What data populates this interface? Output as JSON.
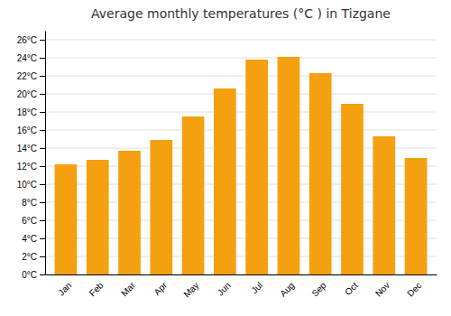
{
  "chart_data": {
    "type": "bar",
    "title": "Average monthly temperatures (°C ) in Tizgane",
    "categories": [
      "Jan",
      "Feb",
      "Mar",
      "Apr",
      "May",
      "Jun",
      "Jul",
      "Aug",
      "Sep",
      "Oct",
      "Nov",
      "Dec"
    ],
    "values": [
      12.2,
      12.7,
      13.7,
      14.9,
      17.5,
      20.6,
      23.8,
      24.1,
      22.3,
      18.9,
      15.3,
      12.9
    ],
    "color": "#F4A010",
    "ylim": [
      0,
      27
    ],
    "yticks": [
      {
        "value": 0,
        "label": "0°C"
      },
      {
        "value": 2,
        "label": "2°C"
      },
      {
        "value": 4,
        "label": "4°C"
      },
      {
        "value": 6,
        "label": "6°C"
      },
      {
        "value": 8,
        "label": "8°C"
      },
      {
        "value": 10,
        "label": "10°C"
      },
      {
        "value": 12,
        "label": "12°C"
      },
      {
        "value": 14,
        "label": "14°C"
      },
      {
        "value": 16,
        "label": "16°C"
      },
      {
        "value": 18,
        "label": "18°C"
      },
      {
        "value": 20,
        "label": "20°C"
      },
      {
        "value": 22,
        "label": "22°C"
      },
      {
        "value": 24,
        "label": "24°C"
      },
      {
        "value": 26,
        "label": "26°C"
      }
    ],
    "grid": true
  }
}
